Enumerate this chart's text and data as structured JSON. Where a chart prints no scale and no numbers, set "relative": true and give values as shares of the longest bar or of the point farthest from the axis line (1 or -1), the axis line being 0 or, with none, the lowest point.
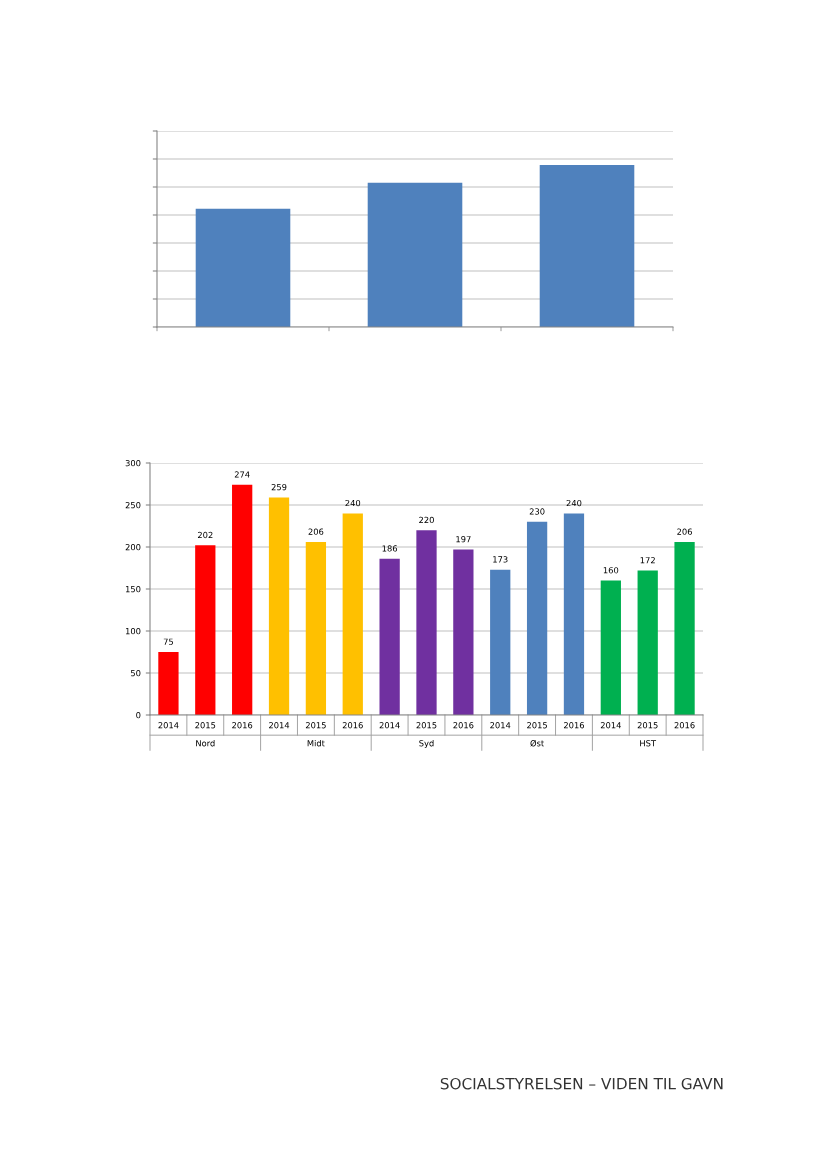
{
  "chart_data": [
    {
      "type": "bar",
      "relative": true,
      "categories": [
        null,
        null,
        null
      ],
      "values": [
        0.73,
        0.89,
        1
      ],
      "color": "#4f81bd",
      "grid": "y"
    },
    {
      "type": "bar",
      "categories": [
        "2014",
        "2015",
        "2016",
        "2014",
        "2015",
        "2016",
        "2014",
        "2015",
        "2016",
        "2014",
        "2015",
        "2016",
        "2014",
        "2015",
        "2016"
      ],
      "values": [
        75,
        202,
        274,
        259,
        206,
        240,
        186,
        220,
        197,
        173,
        230,
        240,
        160,
        172,
        206
      ],
      "colors": [
        "#ff0000",
        "#ff0000",
        "#ff0000",
        "#ffc000",
        "#ffc000",
        "#ffc000",
        "#7030a0",
        "#7030a0",
        "#7030a0",
        "#4f81bd",
        "#4f81bd",
        "#4f81bd",
        "#00b050",
        "#00b050",
        "#00b050"
      ],
      "data_labels": true,
      "ylim": [
        0,
        300
      ],
      "yticks": [
        0,
        50,
        100,
        150,
        200,
        250,
        300
      ],
      "grid": "y",
      "annotations": [
        "Nord",
        "Midt",
        "Syd",
        "Øst",
        "HST",
        "SOCIALSTYRELSEN – VIDEN TIL GAVN"
      ]
    }
  ]
}
